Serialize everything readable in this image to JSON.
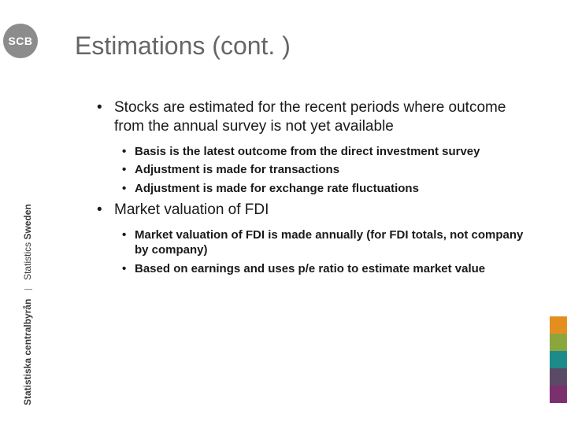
{
  "logo": {
    "text": "SCB"
  },
  "sidebar": {
    "org_sv": "Statistiska centralbyrån",
    "org_en_a": "Statistics",
    "org_en_b": "Sweden",
    "text_color": "#3a3a3a",
    "fontsize": 12
  },
  "title": {
    "text": "Estimations (cont. )",
    "color": "#666666",
    "fontsize": 32
  },
  "content": {
    "fontsize_lvl1": 19,
    "fontsize_lvl2": 15,
    "text_color": "#1a1a1a",
    "items": [
      {
        "text": "Stocks are estimated for the recent periods where outcome from the annual survey is not yet available",
        "sub": [
          "Basis is the latest outcome from the direct investment survey",
          "Adjustment is made for transactions",
          "Adjustment is made for exchange rate fluctuations"
        ]
      },
      {
        "text": "Market valuation of FDI",
        "sub": [
          "Market valuation of FDI is made annually (for FDI totals, not company by company)",
          "Based on earnings and uses p/e ratio to estimate market value"
        ]
      }
    ]
  },
  "color_strip": {
    "square_size": 22,
    "colors": [
      "#e28f1f",
      "#8aa63d",
      "#1f8a8a",
      "#5a4a66",
      "#7a2f6f"
    ]
  },
  "background_color": "#ffffff"
}
